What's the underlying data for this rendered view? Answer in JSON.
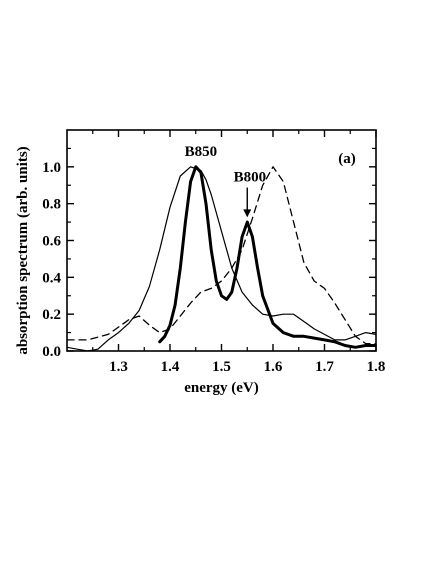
{
  "chart_data": {
    "type": "line",
    "xlabel": "energy (eV)",
    "ylabel": "absorption spectrum (arb. units)",
    "xlim": [
      1.2,
      1.8
    ],
    "ylim": [
      0.0,
      1.2
    ],
    "xticks": [
      1.3,
      1.4,
      1.5,
      1.6,
      1.7,
      1.8
    ],
    "yticks": [
      0.0,
      0.2,
      0.4,
      0.6,
      0.8,
      1.0
    ],
    "xtick_labels": [
      "1.3",
      "1.4",
      "1.5",
      "1.6",
      "1.7",
      "1.8"
    ],
    "ytick_labels": [
      "0.0",
      "0.2",
      "0.4",
      "0.6",
      "0.8",
      "1.0"
    ],
    "panel_label": "(a)",
    "grid": false,
    "annotations": [
      {
        "text": "B850",
        "x": 1.46,
        "y": 1.06
      },
      {
        "text": "B800",
        "x": 1.555,
        "y": 0.92,
        "arrow_to": [
          1.55,
          0.72
        ]
      }
    ],
    "series": [
      {
        "style": "thin-solid",
        "x": [
          1.2,
          1.22,
          1.24,
          1.26,
          1.28,
          1.3,
          1.32,
          1.34,
          1.36,
          1.38,
          1.4,
          1.42,
          1.44,
          1.46,
          1.47,
          1.48,
          1.5,
          1.52,
          1.54,
          1.56,
          1.58,
          1.6,
          1.62,
          1.64,
          1.66,
          1.68,
          1.7,
          1.72,
          1.74,
          1.76,
          1.78,
          1.8
        ],
        "y": [
          0.02,
          0.01,
          0.0,
          0.01,
          0.06,
          0.1,
          0.15,
          0.22,
          0.35,
          0.55,
          0.78,
          0.95,
          1.0,
          0.98,
          0.93,
          0.85,
          0.65,
          0.45,
          0.32,
          0.25,
          0.2,
          0.19,
          0.2,
          0.2,
          0.16,
          0.12,
          0.09,
          0.06,
          0.06,
          0.08,
          0.1,
          0.09
        ]
      },
      {
        "style": "thick-solid",
        "x": [
          1.38,
          1.39,
          1.4,
          1.41,
          1.42,
          1.43,
          1.44,
          1.45,
          1.46,
          1.47,
          1.48,
          1.49,
          1.5,
          1.51,
          1.52,
          1.53,
          1.54,
          1.55,
          1.56,
          1.57,
          1.58,
          1.6,
          1.62,
          1.64,
          1.66,
          1.68,
          1.7,
          1.72,
          1.74,
          1.76,
          1.78,
          1.8
        ],
        "y": [
          0.05,
          0.08,
          0.14,
          0.25,
          0.45,
          0.7,
          0.92,
          1.0,
          0.97,
          0.8,
          0.55,
          0.38,
          0.3,
          0.28,
          0.32,
          0.45,
          0.62,
          0.7,
          0.62,
          0.45,
          0.3,
          0.15,
          0.1,
          0.08,
          0.08,
          0.07,
          0.06,
          0.05,
          0.03,
          0.02,
          0.03,
          0.03
        ]
      },
      {
        "style": "dashed",
        "x": [
          1.2,
          1.24,
          1.28,
          1.3,
          1.32,
          1.34,
          1.36,
          1.38,
          1.4,
          1.42,
          1.44,
          1.46,
          1.48,
          1.5,
          1.52,
          1.54,
          1.56,
          1.58,
          1.6,
          1.62,
          1.64,
          1.66,
          1.68,
          1.7,
          1.72,
          1.74,
          1.76,
          1.78,
          1.8
        ],
        "y": [
          0.06,
          0.06,
          0.09,
          0.13,
          0.17,
          0.19,
          0.14,
          0.1,
          0.12,
          0.19,
          0.26,
          0.32,
          0.34,
          0.38,
          0.45,
          0.55,
          0.72,
          0.9,
          1.0,
          0.92,
          0.7,
          0.48,
          0.38,
          0.34,
          0.26,
          0.17,
          0.08,
          0.04,
          0.04
        ]
      }
    ]
  }
}
